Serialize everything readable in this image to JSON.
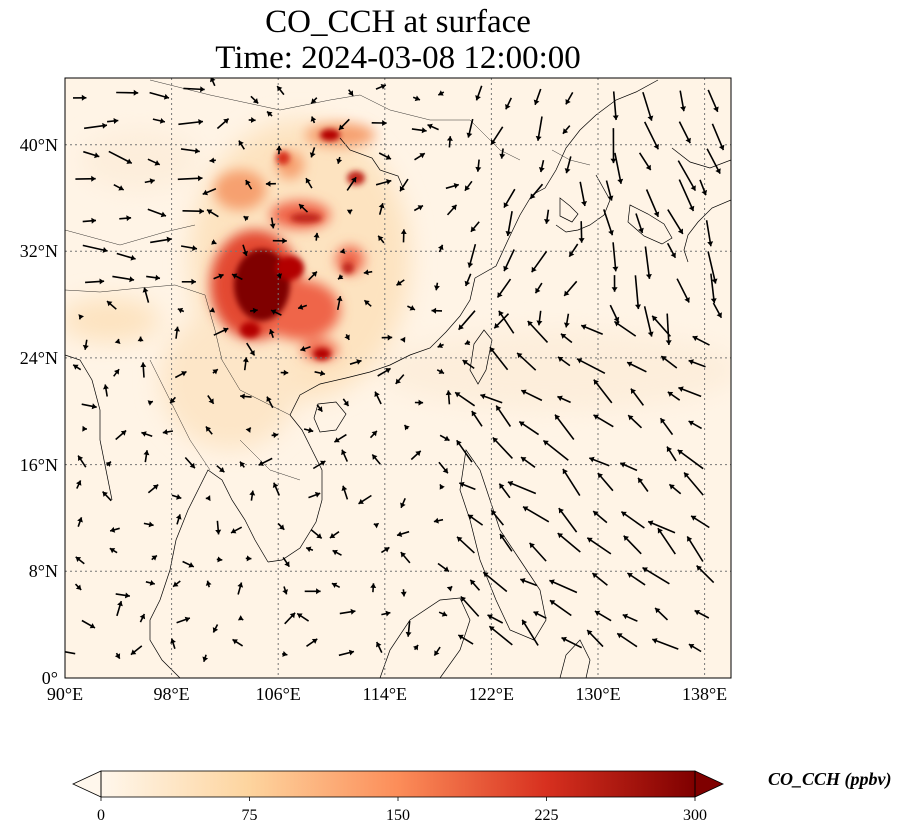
{
  "title": {
    "line1": "CO_CCH at surface",
    "line2": "Time: 2024-03-08 12:00:00"
  },
  "map": {
    "lon_range": [
      90,
      140
    ],
    "lat_range": [
      0,
      45
    ],
    "projection": "PlateCarree",
    "gridlines": "dotted",
    "x_ticks": [
      {
        "value": 90,
        "label": "90°E"
      },
      {
        "value": 98,
        "label": "98°E"
      },
      {
        "value": 106,
        "label": "106°E"
      },
      {
        "value": 114,
        "label": "114°E"
      },
      {
        "value": 122,
        "label": "122°E"
      },
      {
        "value": 130,
        "label": "130°E"
      },
      {
        "value": 138,
        "label": "138°E"
      }
    ],
    "y_ticks": [
      {
        "value": 0,
        "label": "0°"
      },
      {
        "value": 8,
        "label": "8°N"
      },
      {
        "value": 16,
        "label": "16°N"
      },
      {
        "value": 24,
        "label": "24°N"
      },
      {
        "value": 32,
        "label": "32°N"
      },
      {
        "value": 40,
        "label": "40°N"
      }
    ]
  },
  "colorbar": {
    "label": "CO_CCH (ppbv)",
    "colormap": "OrRd",
    "range": [
      0,
      300
    ],
    "extend": "both",
    "ticks": [
      {
        "value": 0,
        "label": "0"
      },
      {
        "value": 75,
        "label": "75"
      },
      {
        "value": 150,
        "label": "150"
      },
      {
        "value": 225,
        "label": "225"
      },
      {
        "value": 300,
        "label": "300"
      }
    ]
  },
  "colors": {
    "c0": "#fff7ec",
    "c75": "#fdd49e",
    "c150": "#fc8d59",
    "c225": "#d7301f",
    "c300": "#7f0000"
  }
}
